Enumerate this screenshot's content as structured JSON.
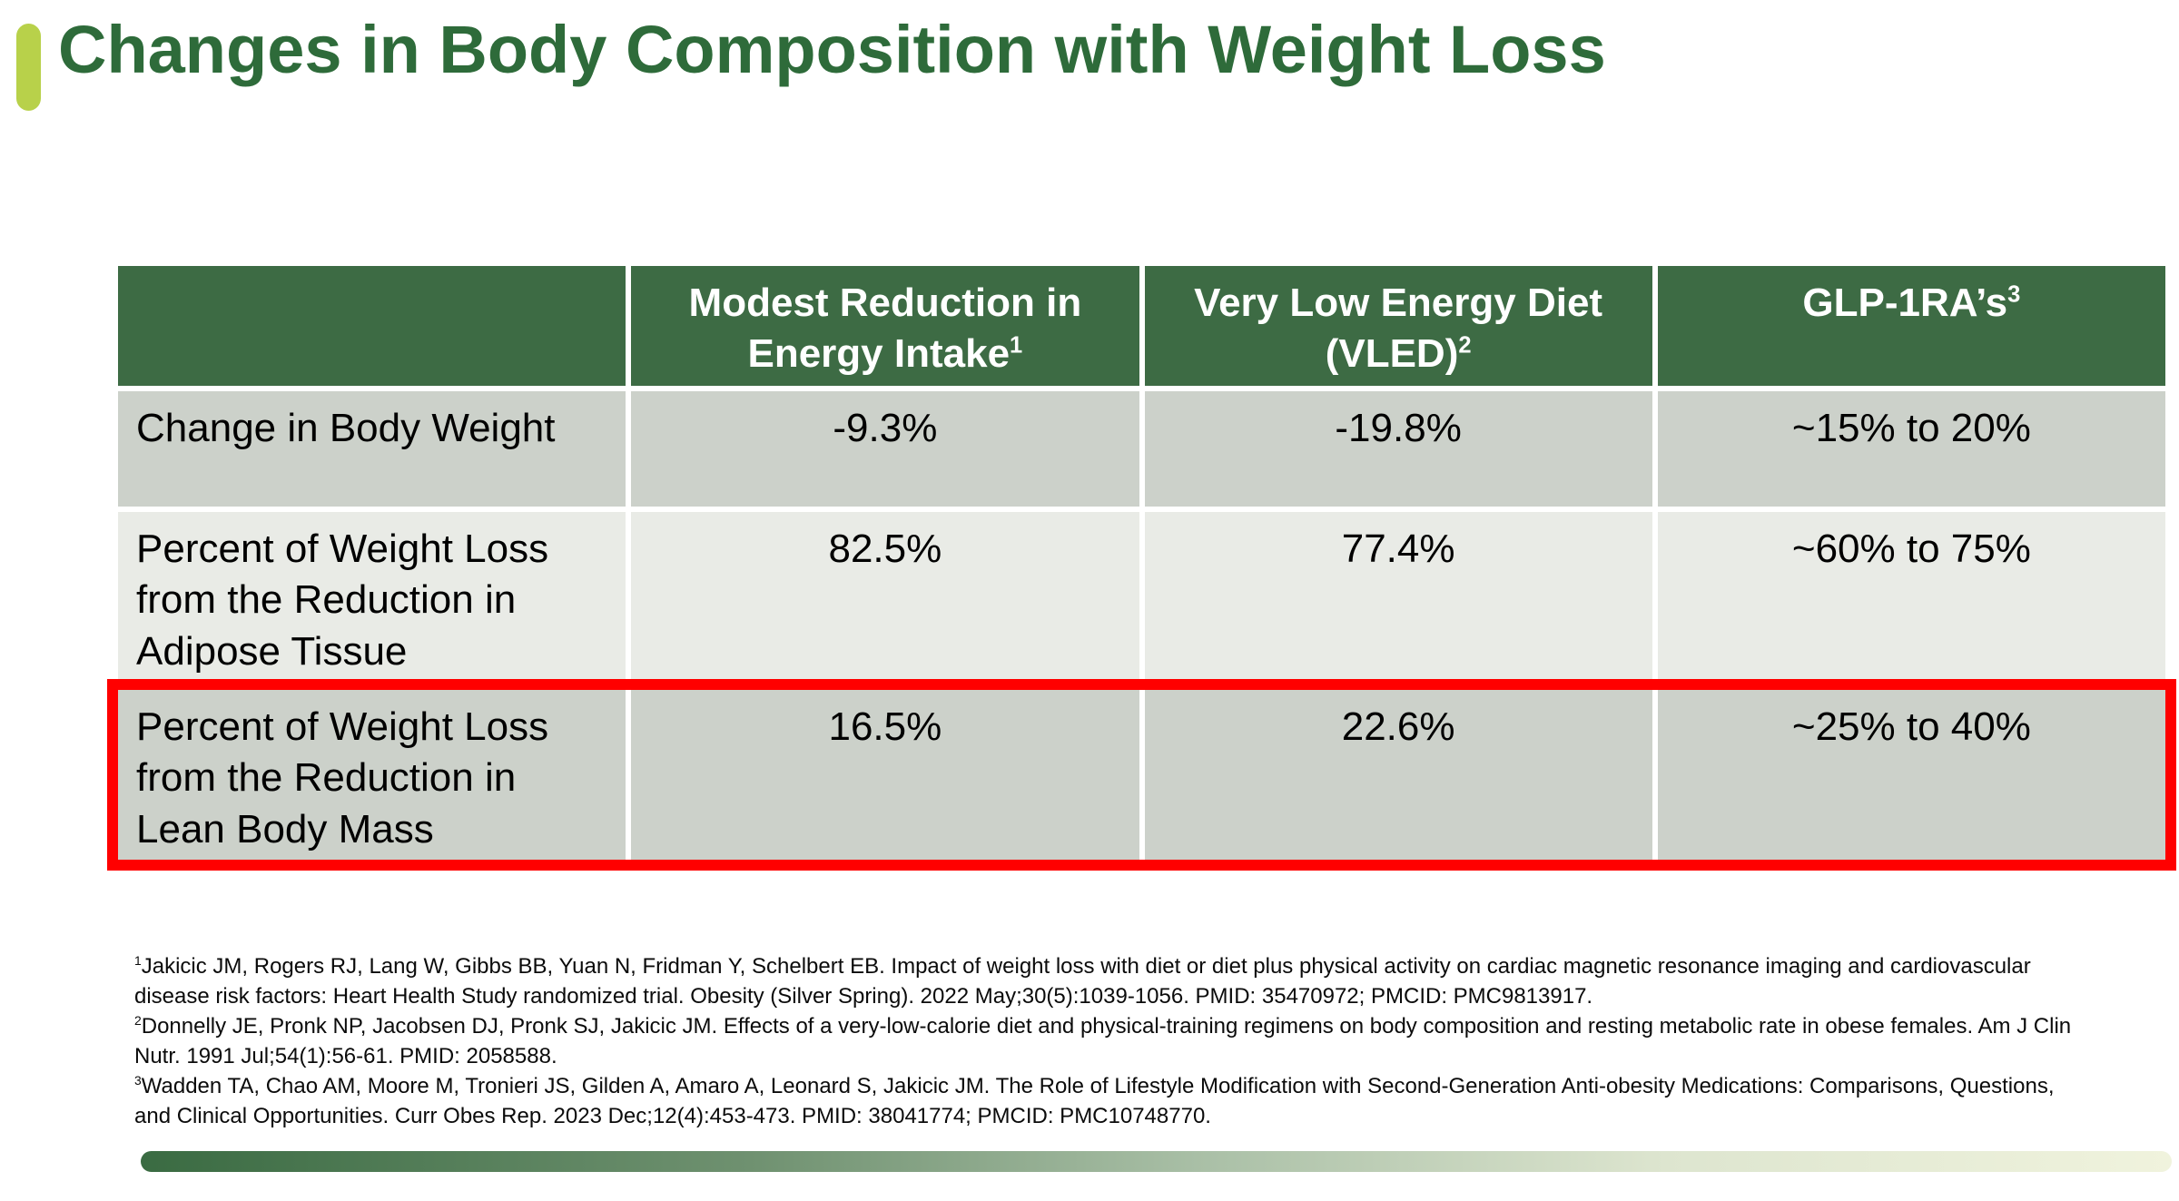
{
  "colors": {
    "title_green": "#2e6b3a",
    "accent_lime": "#b8d14a",
    "header_green": "#3d6b44",
    "row_gray": "#ccd1ca",
    "row_light": "#e9ebe6",
    "highlight_red": "#ff0000",
    "bar_gradient_start": "#3a6b42",
    "bar_gradient_end": "#f0f3dd"
  },
  "slide": {
    "title": "Changes in Body Composition with Weight Loss"
  },
  "table": {
    "columns": [
      {
        "label": "",
        "sup": ""
      },
      {
        "label": "Modest Reduction in Energy Intake",
        "sup": "1"
      },
      {
        "label": "Very Low Energy Diet (VLED)",
        "sup": "2"
      },
      {
        "label": "GLP-1RA’s",
        "sup": "3"
      }
    ],
    "rows": [
      {
        "label": "Change in Body Weight",
        "values": [
          "-9.3%",
          "-19.8%",
          "~15% to 20%"
        ],
        "highlighted": false
      },
      {
        "label": "Percent of Weight Loss from the Reduction in Adipose Tissue",
        "values": [
          "82.5%",
          "77.4%",
          "~60% to 75%"
        ],
        "highlighted": false
      },
      {
        "label": "Percent of Weight Loss from the Reduction in Lean Body Mass",
        "values": [
          "16.5%",
          "22.6%",
          "~25% to 40%"
        ],
        "highlighted": true
      }
    ]
  },
  "footnotes": [
    {
      "marker": "1",
      "text": "Jakicic JM, Rogers RJ, Lang W, Gibbs BB, Yuan N, Fridman Y, Schelbert EB. Impact of weight loss with diet or diet plus physical activity on cardiac magnetic resonance imaging and cardiovascular disease risk factors: Heart Health Study randomized trial. Obesity (Silver Spring). 2022 May;30(5):1039-1056. PMID: 35470972; PMCID: PMC9813917."
    },
    {
      "marker": "2",
      "text": "Donnelly JE, Pronk NP, Jacobsen DJ, Pronk SJ, Jakicic JM. Effects of a very-low-calorie diet and physical-training regimens on body composition and resting metabolic rate in obese females. Am J Clin Nutr. 1991 Jul;54(1):56-61. PMID: 2058588."
    },
    {
      "marker": "3",
      "text": "Wadden TA, Chao AM, Moore M, Tronieri JS, Gilden A, Amaro A, Leonard S, Jakicic JM. The Role of Lifestyle Modification with Second-Generation Anti-obesity Medications: Comparisons, Questions, and Clinical Opportunities. Curr Obes Rep. 2023 Dec;12(4):453-473. PMID: 38041774; PMCID: PMC10748770."
    }
  ]
}
